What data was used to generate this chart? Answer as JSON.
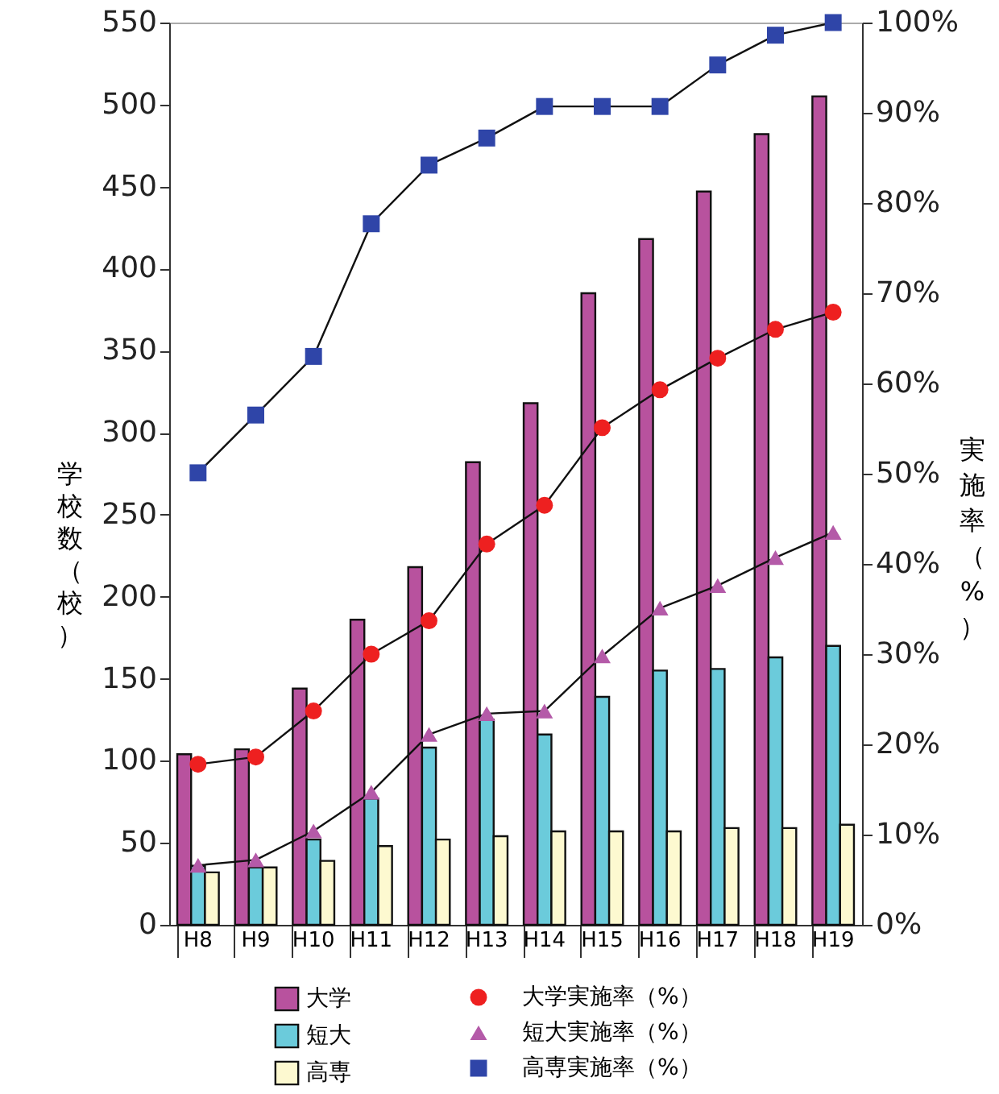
{
  "chart_data": {
    "type": "bar",
    "categories": [
      "H8",
      "H9",
      "H10",
      "H11",
      "H12",
      "H13",
      "H14",
      "H15",
      "H16",
      "H17",
      "H18",
      "H19"
    ],
    "ylabel": "学校数（校）",
    "y2label": "実施率（%）",
    "ylim": [
      0,
      550
    ],
    "yticks": [
      0,
      50,
      100,
      150,
      200,
      250,
      300,
      350,
      400,
      450,
      500,
      550
    ],
    "y2lim": [
      0,
      100
    ],
    "y2ticks": [
      {
        "value": 0,
        "label": "0%"
      },
      {
        "value": 10,
        "label": "10%"
      },
      {
        "value": 20,
        "label": "20%"
      },
      {
        "value": 30,
        "label": "30%"
      },
      {
        "value": 40,
        "label": "40%"
      },
      {
        "value": 50,
        "label": "50%"
      },
      {
        "value": 60,
        "label": "60%"
      },
      {
        "value": 70,
        "label": "70%"
      },
      {
        "value": 80,
        "label": "80%"
      },
      {
        "value": 90,
        "label": "90%"
      },
      {
        "value": 100,
        "label": "100%"
      }
    ],
    "grid": false,
    "legend": "bottom",
    "series": [
      {
        "name": "大学",
        "color": "#b8529e",
        "values": [
          104,
          107,
          144,
          186,
          218,
          282,
          318,
          385,
          418,
          447,
          482,
          505
        ]
      },
      {
        "name": "短大",
        "color": "#6bcbdb",
        "values": [
          36,
          35,
          52,
          77,
          108,
          125,
          116,
          139,
          155,
          156,
          163,
          170
        ]
      },
      {
        "name": "高専",
        "color": "#fdf9d0",
        "values": [
          32,
          35,
          39,
          48,
          52,
          54,
          57,
          57,
          57,
          59,
          59,
          61
        ]
      },
      {
        "type": "line",
        "name": "大学実施率（%）",
        "color": "#ee2020",
        "marker": "circle",
        "axis": "y2",
        "values": [
          17.8,
          18.6,
          23.7,
          30.0,
          33.7,
          42.2,
          46.5,
          55.1,
          59.3,
          62.8,
          66.0,
          67.9
        ]
      },
      {
        "type": "line",
        "name": "短大実施率（%）",
        "color": "#b45aa8",
        "marker": "triangle",
        "axis": "y2",
        "values": [
          6.6,
          7.2,
          10.4,
          14.7,
          21.1,
          23.4,
          23.7,
          29.8,
          35.1,
          37.6,
          40.7,
          43.5
        ]
      },
      {
        "type": "line",
        "name": "高専実施率（%）",
        "color": "#2f45a8",
        "marker": "square",
        "axis": "y2",
        "values": [
          50.1,
          56.5,
          63.0,
          77.7,
          84.2,
          87.2,
          90.7,
          90.7,
          90.7,
          95.3,
          98.6,
          100
        ]
      }
    ]
  }
}
